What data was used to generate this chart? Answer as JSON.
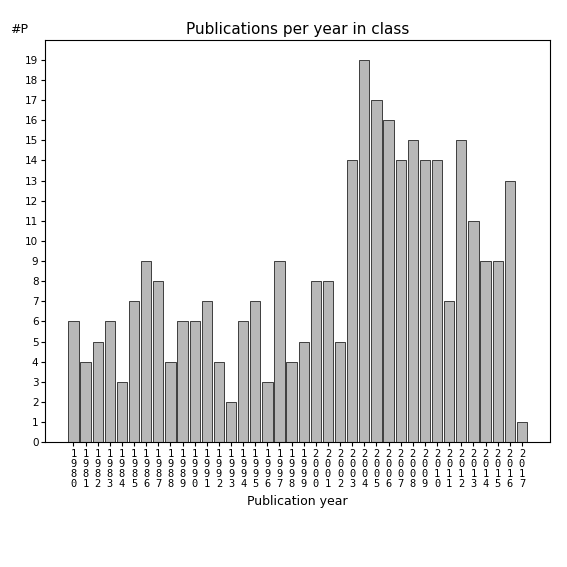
{
  "title": "Publications per year in class",
  "xlabel": "Publication year",
  "ylabel": "#P",
  "bar_color": "#b8b8b8",
  "bar_edgecolor": "#000000",
  "years": [
    1980,
    1981,
    1982,
    1983,
    1984,
    1985,
    1986,
    1987,
    1988,
    1989,
    1990,
    1991,
    1992,
    1993,
    1994,
    1995,
    1996,
    1997,
    1998,
    1999,
    2000,
    2001,
    2002,
    2003,
    2004,
    2005,
    2006,
    2007,
    2008,
    2009,
    2010,
    2011,
    2012,
    2013,
    2014,
    2015,
    2016,
    2017
  ],
  "values": [
    6,
    4,
    5,
    6,
    3,
    7,
    9,
    8,
    4,
    6,
    6,
    7,
    4,
    2,
    6,
    7,
    3,
    9,
    4,
    5,
    8,
    8,
    5,
    14,
    19,
    17,
    16,
    14,
    15,
    14,
    14,
    7,
    15,
    11,
    9,
    9,
    13,
    1
  ],
  "ylim": [
    0,
    20
  ],
  "yticks": [
    0,
    1,
    2,
    3,
    4,
    5,
    6,
    7,
    8,
    9,
    10,
    11,
    12,
    13,
    14,
    15,
    16,
    17,
    18,
    19
  ],
  "background_color": "#ffffff",
  "title_fontsize": 11,
  "label_fontsize": 9,
  "tick_fontsize": 7.5
}
